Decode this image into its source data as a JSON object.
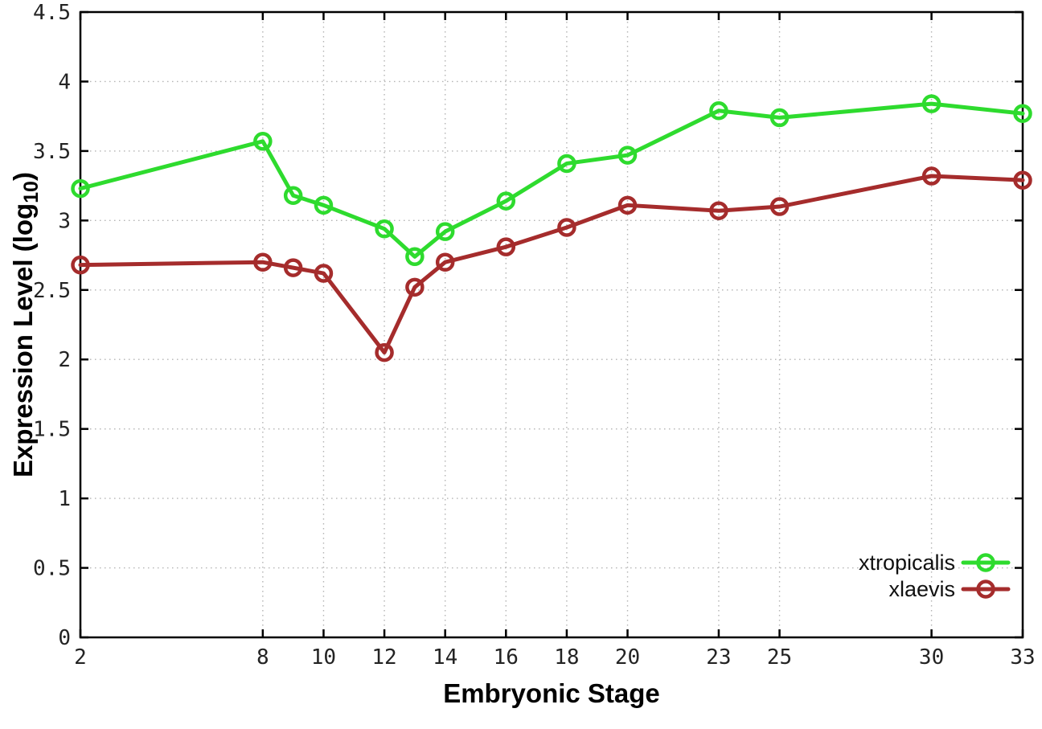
{
  "figure": {
    "background_color": "#ffffff",
    "axis_color": "#000000",
    "grid_color": "#b3b3b3",
    "tick_text_color": "#232323"
  },
  "chart_data": {
    "type": "line",
    "title": "",
    "xlabel": "Embryonic Stage",
    "ylabel": "Expression Level (log10)",
    "ylabel_parts": {
      "prefix": "Expression Level (log",
      "sub": "10",
      "suffix": ")"
    },
    "xlim": [
      2,
      33
    ],
    "ylim": [
      0,
      4.5
    ],
    "xticks": [
      2,
      8,
      10,
      12,
      14,
      16,
      18,
      20,
      23,
      25,
      30,
      33
    ],
    "yticks": [
      0,
      0.5,
      1,
      1.5,
      2,
      2.5,
      3,
      3.5,
      4,
      4.5
    ],
    "grid": true,
    "legend_position": "bottom-right",
    "x": [
      2,
      8,
      9,
      10,
      12,
      13,
      14,
      16,
      18,
      20,
      23,
      25,
      30,
      33
    ],
    "series": [
      {
        "name": "xtropicalis",
        "color": "#2edb2e",
        "values": [
          3.23,
          3.57,
          3.18,
          3.11,
          2.94,
          2.74,
          2.92,
          3.14,
          3.41,
          3.47,
          3.79,
          3.74,
          3.84,
          3.77
        ]
      },
      {
        "name": "xlaevis",
        "color": "#a52c2c",
        "values": [
          2.68,
          2.7,
          2.66,
          2.62,
          2.05,
          2.52,
          2.7,
          2.81,
          2.95,
          3.11,
          3.07,
          3.1,
          3.32,
          3.29
        ]
      }
    ]
  }
}
